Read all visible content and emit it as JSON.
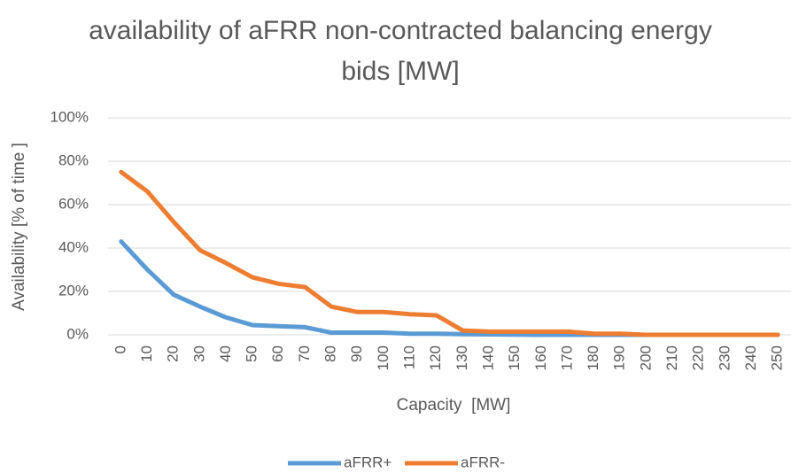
{
  "chart_data": {
    "type": "line",
    "title": "availability of aFRR non-contracted balancing energy bids [MW]",
    "x_label": "Capacity  [MW]",
    "y_label": "Availability [% of time ]",
    "categories": [
      "0",
      "10",
      "20",
      "30",
      "40",
      "50",
      "60",
      "70",
      "80",
      "90",
      "100",
      "110",
      "120",
      "130",
      "140",
      "150",
      "160",
      "170",
      "180",
      "190",
      "200",
      "210",
      "220",
      "230",
      "240",
      "250"
    ],
    "series": [
      {
        "name": "aFRR+",
        "color": "#5b9bd5",
        "values": [
          43,
          30,
          18.5,
          13,
          8,
          4.5,
          4,
          3.5,
          1,
          1,
          1,
          0.5,
          0.5,
          0.3,
          0.2,
          0.1,
          0,
          0,
          0,
          0,
          0,
          0,
          0,
          0,
          0,
          0
        ]
      },
      {
        "name": "aFRR-",
        "color": "#ed7d31",
        "values": [
          75,
          66,
          52,
          39,
          33,
          26.5,
          23.5,
          22,
          13,
          10.5,
          10.5,
          9.5,
          9,
          2,
          1.5,
          1.5,
          1.5,
          1.5,
          0.5,
          0.5,
          0,
          0,
          0,
          0,
          0,
          0
        ]
      }
    ],
    "ylim": [
      0,
      100
    ],
    "yticks": [
      {
        "value": 0,
        "label": "0%"
      },
      {
        "value": 20,
        "label": "20%"
      },
      {
        "value": 40,
        "label": "40%"
      },
      {
        "value": 60,
        "label": "60%"
      },
      {
        "value": 80,
        "label": "80%"
      },
      {
        "value": 100,
        "label": "100%"
      }
    ],
    "grid": true,
    "legend": "bottom"
  }
}
